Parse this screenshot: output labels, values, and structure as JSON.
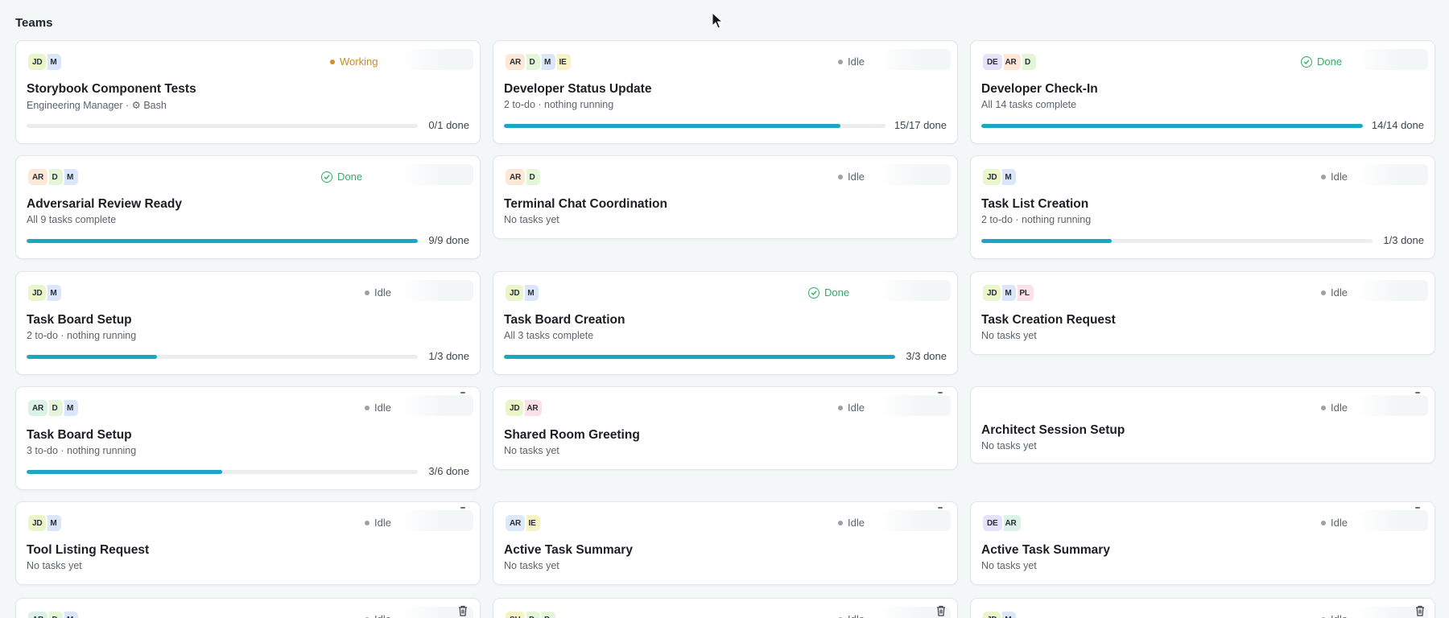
{
  "page": {
    "heading": "Teams"
  },
  "colors": {
    "accent": "#1ba6c3",
    "working": "#d08f2a",
    "done": "#2fae62",
    "idle": "#9aa1a9"
  },
  "teams": [
    {
      "title": "Storybook Component Tests",
      "subtitle": "Engineering Manager · ⚙ Bash",
      "status": "Working",
      "progress": 0.0,
      "done_label": "0/1 done",
      "avatars": [
        {
          "initials": "JD",
          "color": "#eaf5c9"
        },
        {
          "initials": "M",
          "color": "#dbe6fa"
        }
      ]
    },
    {
      "title": "Developer Status Update",
      "subtitle": "2 to-do · nothing running",
      "status": "Idle",
      "progress": 0.882,
      "done_label": "15/17 done",
      "avatars": [
        {
          "initials": "AR",
          "color": "#fde7d6"
        },
        {
          "initials": "D",
          "color": "#e3f6d7"
        },
        {
          "initials": "M",
          "color": "#dbe6fa"
        },
        {
          "initials": "IE",
          "color": "#f7f3c9"
        }
      ]
    },
    {
      "title": "Developer Check-In",
      "subtitle": "All 14 tasks complete",
      "status": "Done",
      "progress": 1.0,
      "done_label": "14/14 done",
      "avatars": [
        {
          "initials": "DE",
          "color": "#e6e2fa"
        },
        {
          "initials": "AR",
          "color": "#fde7d6"
        },
        {
          "initials": "D",
          "color": "#e3f6d7"
        }
      ]
    },
    {
      "title": "Adversarial Review Ready",
      "subtitle": "All 9 tasks complete",
      "status": "Done",
      "progress": 1.0,
      "done_label": "9/9 done",
      "avatars": [
        {
          "initials": "AR",
          "color": "#fde7d6"
        },
        {
          "initials": "D",
          "color": "#e3f6d7"
        },
        {
          "initials": "M",
          "color": "#dbe6fa"
        }
      ]
    },
    {
      "title": "Terminal Chat Coordination",
      "subtitle": "No tasks yet",
      "status": "Idle",
      "progress": null,
      "done_label": "",
      "avatars": [
        {
          "initials": "AR",
          "color": "#fde7d6"
        },
        {
          "initials": "D",
          "color": "#e3f6d7"
        }
      ]
    },
    {
      "title": "Task List Creation",
      "subtitle": "2 to-do · nothing running",
      "status": "Idle",
      "progress": 0.333,
      "done_label": "1/3 done",
      "avatars": [
        {
          "initials": "JD",
          "color": "#eaf5c9"
        },
        {
          "initials": "M",
          "color": "#dbe6fa"
        }
      ]
    },
    {
      "title": "Task Board Setup",
      "subtitle": "2 to-do · nothing running",
      "status": "Idle",
      "progress": 0.333,
      "done_label": "1/3 done",
      "avatars": [
        {
          "initials": "JD",
          "color": "#eaf5c9"
        },
        {
          "initials": "M",
          "color": "#dbe6fa"
        }
      ]
    },
    {
      "title": "Task Board Creation",
      "subtitle": "All 3 tasks complete",
      "status": "Done",
      "progress": 1.0,
      "done_label": "3/3 done",
      "avatars": [
        {
          "initials": "JD",
          "color": "#eaf5c9"
        },
        {
          "initials": "M",
          "color": "#dbe6fa"
        }
      ]
    },
    {
      "title": "Task Creation Request",
      "subtitle": "No tasks yet",
      "status": "Idle",
      "progress": null,
      "done_label": "",
      "avatars": [
        {
          "initials": "JD",
          "color": "#eaf5c9"
        },
        {
          "initials": "M",
          "color": "#dbe6fa"
        },
        {
          "initials": "PL",
          "color": "#fbe0e6"
        }
      ]
    },
    {
      "title": "Task Board Setup",
      "subtitle": "3 to-do · nothing running",
      "status": "Idle",
      "progress": 0.5,
      "done_label": "3/6 done",
      "avatars": [
        {
          "initials": "AR",
          "color": "#dcf2e6"
        },
        {
          "initials": "D",
          "color": "#e3f6d7"
        },
        {
          "initials": "M",
          "color": "#dbe6fa"
        }
      ]
    },
    {
      "title": "Shared Room Greeting",
      "subtitle": "No tasks yet",
      "status": "Idle",
      "progress": null,
      "done_label": "",
      "avatars": [
        {
          "initials": "JD",
          "color": "#eaf5c9"
        },
        {
          "initials": "AR",
          "color": "#fbe0e6"
        }
      ]
    },
    {
      "title": "Architect Session Setup",
      "subtitle": "No tasks yet",
      "status": "Idle",
      "progress": null,
      "done_label": "",
      "avatars": []
    },
    {
      "title": "Tool Listing Request",
      "subtitle": "No tasks yet",
      "status": "Idle",
      "progress": null,
      "done_label": "",
      "avatars": [
        {
          "initials": "JD",
          "color": "#eaf5c9"
        },
        {
          "initials": "M",
          "color": "#dbe6fa"
        }
      ]
    },
    {
      "title": "Active Task Summary",
      "subtitle": "No tasks yet",
      "status": "Idle",
      "progress": null,
      "done_label": "",
      "avatars": [
        {
          "initials": "AR",
          "color": "#dde9f6"
        },
        {
          "initials": "IE",
          "color": "#f7f3c9"
        }
      ]
    },
    {
      "title": "Active Task Summary",
      "subtitle": "No tasks yet",
      "status": "Idle",
      "progress": null,
      "done_label": "",
      "avatars": [
        {
          "initials": "DE",
          "color": "#e6e2fa"
        },
        {
          "initials": "AR",
          "color": "#dcf2e6"
        }
      ]
    },
    {
      "title": "",
      "subtitle": "",
      "status": "Idle",
      "progress": null,
      "done_label": "",
      "avatars": [
        {
          "initials": "AR",
          "color": "#dcf2e6"
        },
        {
          "initials": "D",
          "color": "#e3f6d7"
        },
        {
          "initials": "M",
          "color": "#dbe6fa"
        }
      ]
    },
    {
      "title": "",
      "subtitle": "",
      "status": "Idle",
      "progress": null,
      "done_label": "",
      "avatars": [
        {
          "initials": "SH",
          "color": "#f7f3c9"
        },
        {
          "initials": "D",
          "color": "#e3f6d7"
        },
        {
          "initials": "D",
          "color": "#e3f6d7"
        }
      ]
    },
    {
      "title": "",
      "subtitle": "",
      "status": "Idle",
      "progress": null,
      "done_label": "",
      "avatars": [
        {
          "initials": "JD",
          "color": "#eaf5c9"
        },
        {
          "initials": "M",
          "color": "#dbe6fa"
        }
      ]
    }
  ],
  "icons": {
    "cursor": "arrow-cursor-icon",
    "status_dot": "status-dot-icon",
    "done_check": "check-circle-icon",
    "trash": "trash-icon"
  }
}
